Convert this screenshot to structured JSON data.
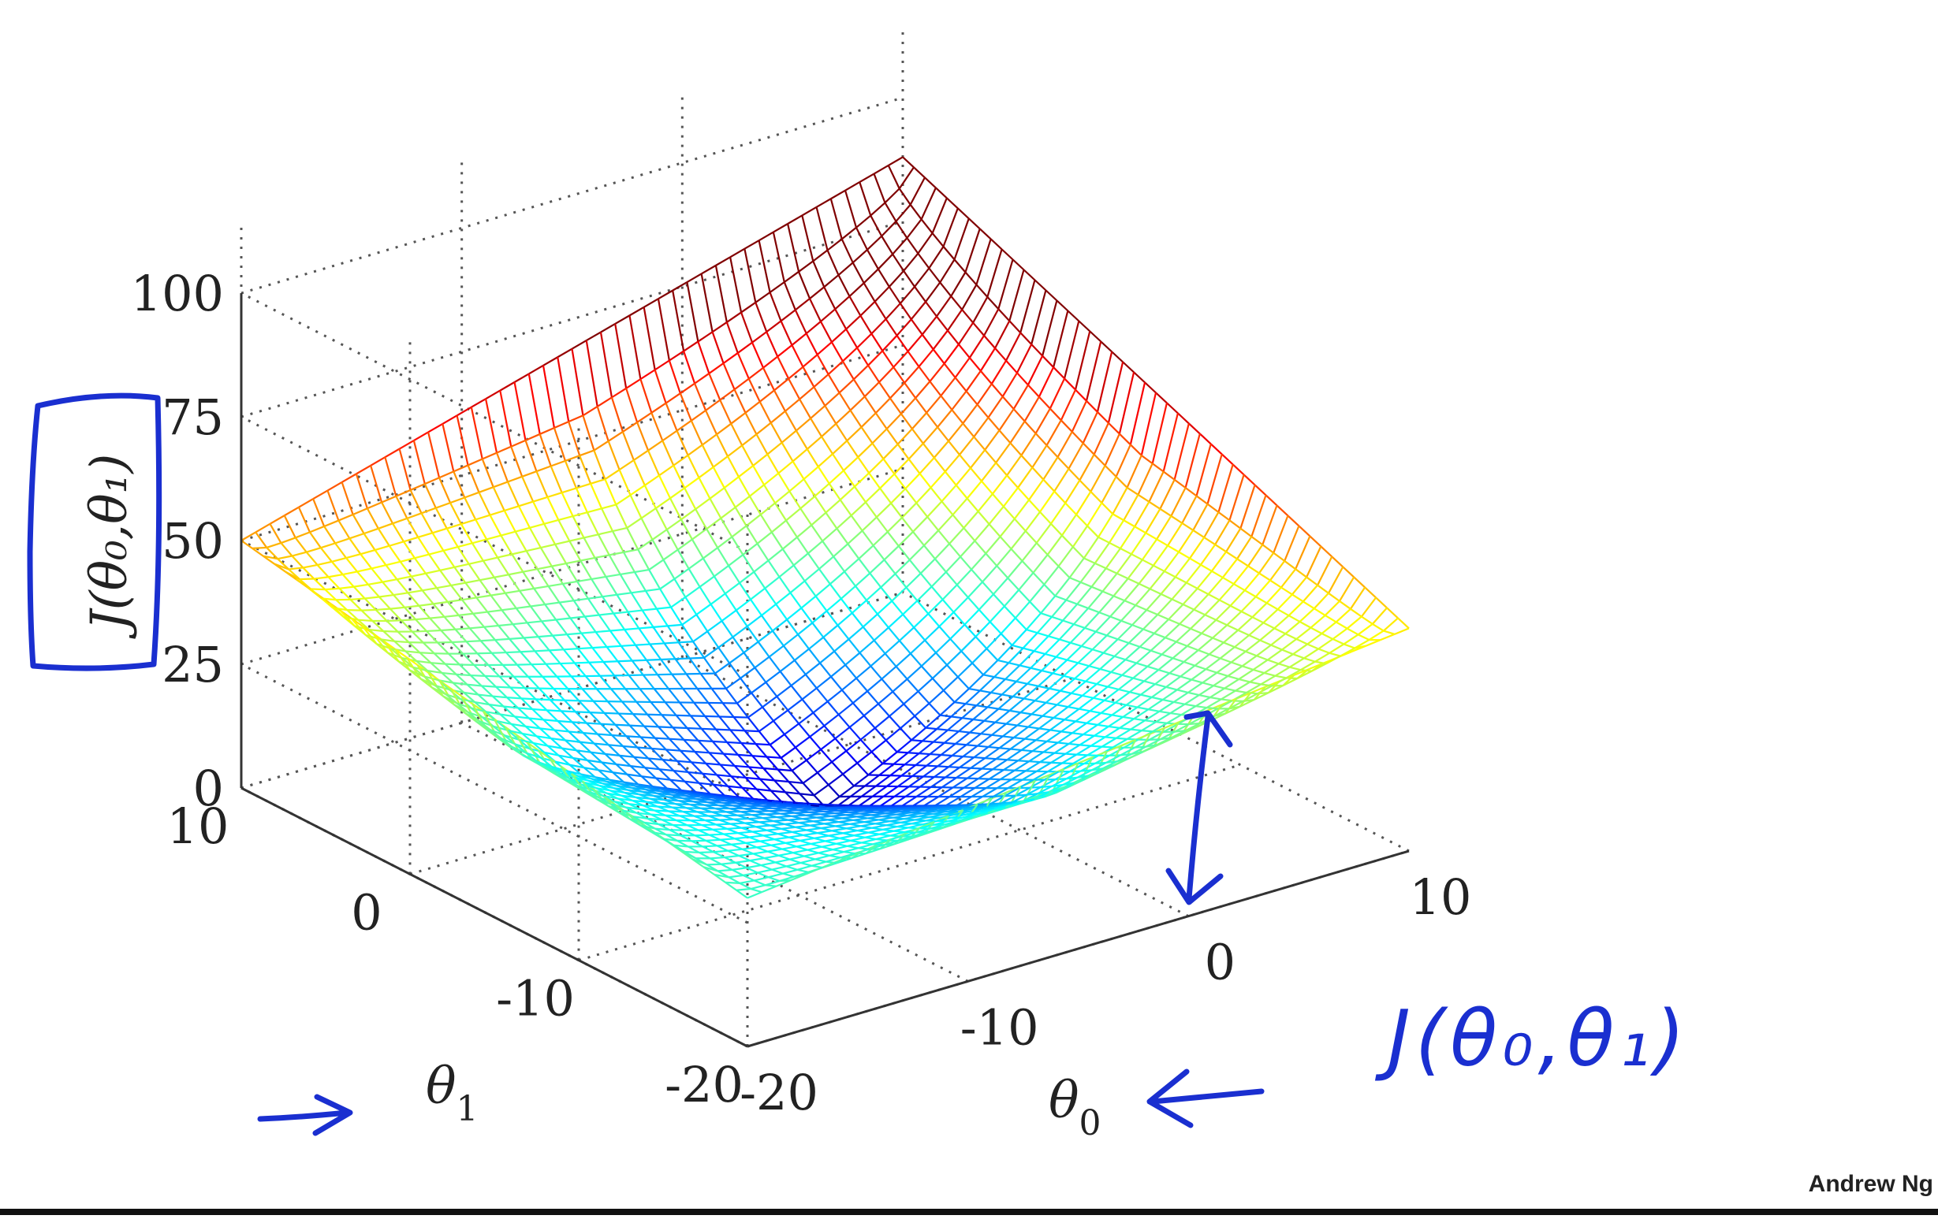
{
  "credit": "Andrew Ng",
  "chart_data": {
    "type": "surface",
    "function": "bowl",
    "x_name": "theta0",
    "y_name": "theta1",
    "xlim": [
      -20,
      10
    ],
    "ylim": [
      -20,
      10
    ],
    "zlim": [
      0,
      100
    ],
    "x_ticks": [
      "-20",
      "-10",
      "0",
      "10"
    ],
    "x_tick_values": [
      -20,
      -10,
      0,
      10
    ],
    "y_ticks": [
      "-20",
      "-10",
      "0",
      "10"
    ],
    "y_tick_values": [
      -20,
      -10,
      0,
      10
    ],
    "z_ticks": [
      "0",
      "25",
      "50",
      "75",
      "100"
    ],
    "z_tick_values": [
      0,
      25,
      50,
      75,
      100
    ],
    "xlabel": "θ",
    "xlabel_sub": "0",
    "ylabel": "θ",
    "ylabel_sub": "1",
    "zlabel": "J(θ₀,θ₁)",
    "corner_values": [
      {
        "theta0": -20,
        "theta1": -20,
        "J": 30
      },
      {
        "theta0": 10,
        "theta1": -20,
        "J": 45
      },
      {
        "theta0": -20,
        "theta1": 10,
        "J": 50
      },
      {
        "theta0": 10,
        "theta1": 10,
        "J": 88
      }
    ],
    "minimum": {
      "theta0": -5,
      "theta1": -5,
      "J": 3
    },
    "colormap": "jet",
    "grid": true
  },
  "annotation": {
    "handwritten_label": "J(θ₀,θ₁)",
    "color": "#1a2fd0"
  }
}
